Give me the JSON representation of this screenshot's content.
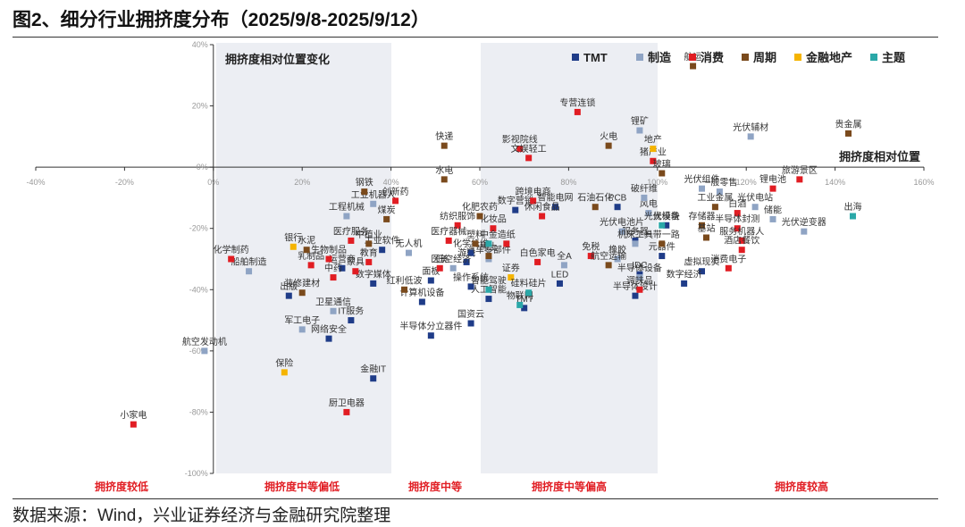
{
  "figure_title": "图2、细分行业拥挤度分布（2025/9/8-2025/9/12）",
  "source_note": "数据来源：Wind，兴业证券经济与金融研究院整理",
  "colors": {
    "TMT": "#1f3c88",
    "制造": "#8fa4c4",
    "消费": "#e11d23",
    "周期": "#7a4a1c",
    "金融地产": "#f5b400",
    "主题": "#2aa8a8",
    "band": "#eceef3",
    "axis": "#333333",
    "tick": "#999999",
    "zone": "#e11d23"
  },
  "chart_data": {
    "type": "scatter",
    "title": "拥挤度相对位置变化",
    "xlabel": "拥挤度相对位置",
    "ylabel": "",
    "xlim": [
      -40,
      160
    ],
    "ylim": [
      -100,
      40
    ],
    "x_ticks": [
      "-40%",
      "-20%",
      "0%",
      "20%",
      "40%",
      "60%",
      "80%",
      "100%",
      "120%",
      "140%",
      "160%"
    ],
    "y_ticks": [
      "40%",
      "20%",
      "0%",
      "-20%",
      "-40%",
      "-60%",
      "-80%",
      "-100%"
    ],
    "legend_position": "top-right",
    "series": [
      {
        "name": "TMT",
        "points": [
          {
            "label": "IT服务",
            "x": 31,
            "y": -50
          },
          {
            "label": "网络安全",
            "x": 26,
            "y": -56
          },
          {
            "label": "金融IT",
            "x": 36,
            "y": -69
          },
          {
            "label": "出版",
            "x": 17,
            "y": -42
          },
          {
            "label": "运营商",
            "x": 29,
            "y": -33
          },
          {
            "label": "数字媒体",
            "x": 36,
            "y": -38
          },
          {
            "label": "工业软件",
            "x": 38,
            "y": -27
          },
          {
            "label": "游戏",
            "x": 57,
            "y": -31
          },
          {
            "label": "面板",
            "x": 49,
            "y": -37
          },
          {
            "label": "操作系统",
            "x": 58,
            "y": -39
          },
          {
            "label": "计算机设备",
            "x": 47,
            "y": -44
          },
          {
            "label": "人工智能",
            "x": 62,
            "y": -43
          },
          {
            "label": "国资云",
            "x": 58,
            "y": -51
          },
          {
            "label": "半导体分立器件",
            "x": 49,
            "y": -55
          },
          {
            "label": "TMT",
            "x": 70,
            "y": -46
          },
          {
            "label": "PCB",
            "x": 91,
            "y": -13
          },
          {
            "label": "数字营销",
            "x": 68,
            "y": -14
          },
          {
            "label": "智能电网",
            "x": 77,
            "y": -13
          },
          {
            "label": "化学纤维",
            "x": 58,
            "y": -28
          },
          {
            "label": "光模块",
            "x": 102,
            "y": -19
          },
          {
            "label": "LED",
            "x": 78,
            "y": -38
          },
          {
            "label": "IDC",
            "x": 96,
            "y": -35
          },
          {
            "label": "半导体设计",
            "x": 95,
            "y": -42
          },
          {
            "label": "虚拟现实",
            "x": 110,
            "y": -34
          },
          {
            "label": "数字经济",
            "x": 106,
            "y": -38
          },
          {
            "label": "元器件",
            "x": 101,
            "y": -29
          },
          {
            "label": "服务器",
            "x": 95,
            "y": -24
          }
        ]
      },
      {
        "name": "制造",
        "points": [
          {
            "label": "船舶制造",
            "x": 8,
            "y": -34
          },
          {
            "label": "航空发动机",
            "x": -2,
            "y": -60
          },
          {
            "label": "军工电子",
            "x": 20,
            "y": -53
          },
          {
            "label": "卫星通信",
            "x": 27,
            "y": -47
          },
          {
            "label": "工业机器人",
            "x": 36,
            "y": -12
          },
          {
            "label": "工程机械",
            "x": 30,
            "y": -16
          },
          {
            "label": "无人机",
            "x": 44,
            "y": -28
          },
          {
            "label": "低空经济",
            "x": 54,
            "y": -33
          },
          {
            "label": "汽车零部件",
            "x": 62,
            "y": -30
          },
          {
            "label": "半导体设备",
            "x": 96,
            "y": -36
          },
          {
            "label": "锂矿",
            "x": 96,
            "y": 12
          },
          {
            "label": "光伏辅材",
            "x": 121,
            "y": 10
          },
          {
            "label": "一般零售",
            "x": 114,
            "y": -8
          },
          {
            "label": "光伏组件",
            "x": 110,
            "y": -7
          },
          {
            "label": "光伏电站",
            "x": 122,
            "y": -13
          },
          {
            "label": "储能",
            "x": 126,
            "y": -17
          },
          {
            "label": "光伏逆变器",
            "x": 133,
            "y": -21
          },
          {
            "label": "风电",
            "x": 98,
            "y": -15
          },
          {
            "label": "光伏电池片",
            "x": 92,
            "y": -21
          },
          {
            "label": "机床工具",
            "x": 95,
            "y": -25
          },
          {
            "label": "橡胶",
            "x": 91,
            "y": -30
          },
          {
            "label": "全A",
            "x": 79,
            "y": -32
          },
          {
            "label": "破纤维",
            "x": 97,
            "y": -10
          }
        ]
      },
      {
        "name": "消费",
        "points": [
          {
            "label": "化学制药",
            "x": 4,
            "y": -30
          },
          {
            "label": "乳制品",
            "x": 22,
            "y": -32
          },
          {
            "label": "医疗服务",
            "x": 31,
            "y": -24
          },
          {
            "label": "生物制品",
            "x": 26,
            "y": -30
          },
          {
            "label": "教育",
            "x": 35,
            "y": -31
          },
          {
            "label": "中药",
            "x": 27,
            "y": -36
          },
          {
            "label": "家具",
            "x": 32,
            "y": -34
          },
          {
            "label": "厨卫电器",
            "x": 30,
            "y": -80
          },
          {
            "label": "小家电",
            "x": -18,
            "y": -84
          },
          {
            "label": "创新药",
            "x": 41,
            "y": -11
          },
          {
            "label": "纺织服饰",
            "x": 55,
            "y": -19
          },
          {
            "label": "医疗器械",
            "x": 53,
            "y": -24
          },
          {
            "label": "医美",
            "x": 51,
            "y": -33
          },
          {
            "label": "跨境电商",
            "x": 72,
            "y": -11
          },
          {
            "label": "休闲食品",
            "x": 74,
            "y": -16
          },
          {
            "label": "化妆品",
            "x": 63,
            "y": -20
          },
          {
            "label": "免税",
            "x": 85,
            "y": -29
          },
          {
            "label": "专营连锁",
            "x": 82,
            "y": 18
          },
          {
            "label": "影视院线",
            "x": 69,
            "y": 6
          },
          {
            "label": "文娱轻工",
            "x": 71,
            "y": 3
          },
          {
            "label": "猪产业",
            "x": 99,
            "y": 2
          },
          {
            "label": "旅游景区",
            "x": 132,
            "y": -4
          },
          {
            "label": "锂电池",
            "x": 126,
            "y": -7
          },
          {
            "label": "白酒",
            "x": 118,
            "y": -15
          },
          {
            "label": "半导体封测",
            "x": 118,
            "y": -20
          },
          {
            "label": "服务机器人",
            "x": 119,
            "y": -24
          },
          {
            "label": "消费电子",
            "x": 116,
            "y": -33
          },
          {
            "label": "酒店餐饮",
            "x": 119,
            "y": -27
          },
          {
            "label": "调味品",
            "x": 96,
            "y": -40
          },
          {
            "label": "白色家电",
            "x": 73,
            "y": -31
          },
          {
            "label": "造纸",
            "x": 66,
            "y": -25
          }
        ]
      },
      {
        "name": "周期",
        "points": [
          {
            "label": "钢铁",
            "x": 34,
            "y": -8
          },
          {
            "label": "水泥",
            "x": 21,
            "y": -27
          },
          {
            "label": "煤炭",
            "x": 39,
            "y": -17
          },
          {
            "label": "中植业",
            "x": 35,
            "y": -25
          },
          {
            "label": "装修建材",
            "x": 20,
            "y": -41
          },
          {
            "label": "红利低波",
            "x": 43,
            "y": -40
          },
          {
            "label": "水电",
            "x": 52,
            "y": -4
          },
          {
            "label": "化肥农药",
            "x": 60,
            "y": -16
          },
          {
            "label": "快递",
            "x": 52,
            "y": 7
          },
          {
            "label": "火电",
            "x": 89,
            "y": 7
          },
          {
            "label": "玻璃",
            "x": 101,
            "y": -2
          },
          {
            "label": "航运",
            "x": 108,
            "y": 33
          },
          {
            "label": "贵金属",
            "x": 143,
            "y": 11
          },
          {
            "label": "石油石化",
            "x": 86,
            "y": -13
          },
          {
            "label": "塑料",
            "x": 59,
            "y": -25
          },
          {
            "label": "稀土",
            "x": 62,
            "y": -29
          },
          {
            "label": "工业金属",
            "x": 113,
            "y": -13
          },
          {
            "label": "存储器",
            "x": 110,
            "y": -19
          },
          {
            "label": "基站",
            "x": 111,
            "y": -23
          },
          {
            "label": "航空运输",
            "x": 89,
            "y": -32
          },
          {
            "label": "一带一路",
            "x": 101,
            "y": -25
          }
        ]
      },
      {
        "name": "金融地产",
        "points": [
          {
            "label": "银行",
            "x": 18,
            "y": -26
          },
          {
            "label": "保险",
            "x": 16,
            "y": -67
          },
          {
            "label": "地产",
            "x": 99,
            "y": 6
          },
          {
            "label": "证券",
            "x": 67,
            "y": -36
          }
        ]
      },
      {
        "name": "主题",
        "points": [
          {
            "label": "出海",
            "x": 144,
            "y": -16
          },
          {
            "label": "中金",
            "x": 62,
            "y": -25
          },
          {
            "label": "物联网",
            "x": 69,
            "y": -45
          },
          {
            "label": "硅料硅片",
            "x": 71,
            "y": -41
          },
          {
            "label": "光伏设备",
            "x": 101,
            "y": -19
          },
          {
            "label": "智能驾驶",
            "x": 62,
            "y": -40
          }
        ]
      }
    ],
    "zone_labels": [
      "拥挤度较低",
      "拥挤度中等偏低",
      "拥挤度中等",
      "拥挤度中等偏高",
      "拥挤度较高"
    ]
  }
}
